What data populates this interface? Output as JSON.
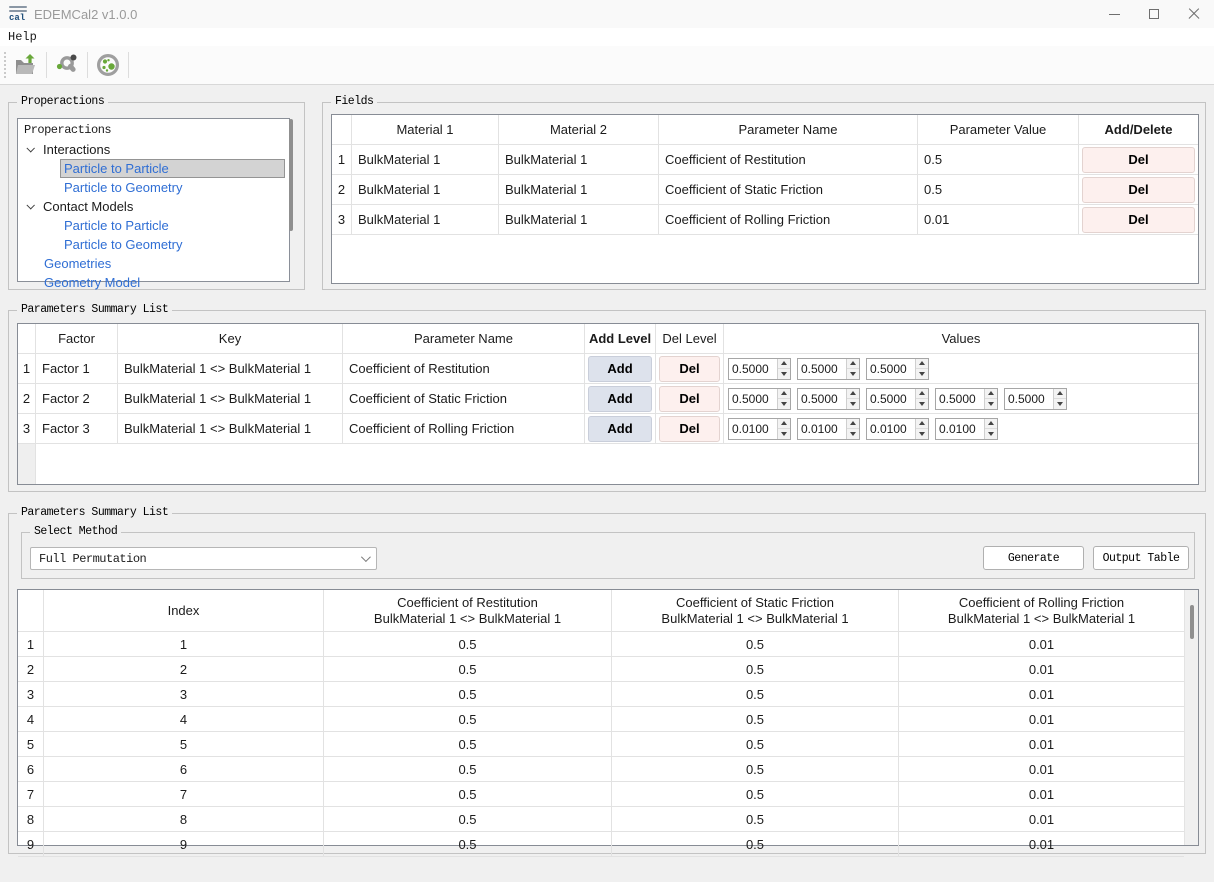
{
  "window": {
    "title": "EDEMCal2 v1.0.0"
  },
  "menu": {
    "help_label": "Help"
  },
  "toolbar": {
    "icons": [
      {
        "name": "open-project-icon"
      },
      {
        "name": "particle-tool-icon"
      },
      {
        "name": "particle-dish-icon"
      }
    ]
  },
  "properactions": {
    "group_title": "Properactions",
    "items": [
      {
        "label": "Properactions",
        "kind": "header",
        "selected": false
      },
      {
        "label": "Interactions",
        "kind": "branch",
        "selected": false
      },
      {
        "label": "Particle to Particle",
        "kind": "child",
        "selected": true
      },
      {
        "label": "Particle to Geometry",
        "kind": "child",
        "selected": false
      },
      {
        "label": "Contact Models",
        "kind": "branch",
        "selected": false
      },
      {
        "label": "Particle to Particle",
        "kind": "child",
        "selected": false
      },
      {
        "label": "Particle to Geometry",
        "kind": "child",
        "selected": false
      },
      {
        "label": "Geometries",
        "kind": "item",
        "selected": false
      },
      {
        "label": "Geometry Model",
        "kind": "item",
        "selected": false
      }
    ]
  },
  "fields": {
    "group_title": "Fields",
    "columns": [
      "Material 1",
      "Material 2",
      "Parameter Name",
      "Parameter Value",
      "Add/Delete"
    ],
    "rows": [
      {
        "num": "1",
        "material1": "BulkMaterial 1",
        "material2": "BulkMaterial 1",
        "parameter_name": "Coefficient of Restitution",
        "parameter_value": "0.5",
        "action": "Del"
      },
      {
        "num": "2",
        "material1": "BulkMaterial 1",
        "material2": "BulkMaterial 1",
        "parameter_name": "Coefficient of Static Friction",
        "parameter_value": "0.5",
        "action": "Del"
      },
      {
        "num": "3",
        "material1": "BulkMaterial 1",
        "material2": "BulkMaterial 1",
        "parameter_name": "Coefficient of Rolling Friction",
        "parameter_value": "0.01",
        "action": "Del"
      }
    ]
  },
  "summary": {
    "group_title": "Parameters Summary List",
    "columns": [
      "Factor",
      "Key",
      "Parameter Name",
      "Add Level",
      "Del Level",
      "Values"
    ],
    "rows": [
      {
        "num": "1",
        "factor": "Factor 1",
        "key": "BulkMaterial 1 <> BulkMaterial 1",
        "parameter_name": "Coefficient of Restitution",
        "add_label": "Add",
        "del_label": "Del",
        "values": [
          "0.5000",
          "0.5000",
          "0.5000"
        ]
      },
      {
        "num": "2",
        "factor": "Factor 2",
        "key": "BulkMaterial 1 <> BulkMaterial 1",
        "parameter_name": "Coefficient of Static Friction",
        "add_label": "Add",
        "del_label": "Del",
        "values": [
          "0.5000",
          "0.5000",
          "0.5000",
          "0.5000",
          "0.5000"
        ]
      },
      {
        "num": "3",
        "factor": "Factor 3",
        "key": "BulkMaterial 1 <> BulkMaterial 1",
        "parameter_name": "Coefficient of Rolling Friction",
        "add_label": "Add",
        "del_label": "Del",
        "values": [
          "0.0100",
          "0.0100",
          "0.0100",
          "0.0100"
        ]
      }
    ]
  },
  "output": {
    "group_title": "Parameters Summary List",
    "select_method": {
      "group_title": "Select Method",
      "value": "Full Permutation"
    },
    "generate_label": "Generate",
    "output_table_label": "Output Table",
    "table": {
      "columns": [
        {
          "line1": "Index",
          "line2": ""
        },
        {
          "line1": "Coefficient of Restitution",
          "line2": "BulkMaterial 1 <> BulkMaterial 1"
        },
        {
          "line1": "Coefficient of Static Friction",
          "line2": "BulkMaterial 1 <> BulkMaterial 1"
        },
        {
          "line1": "Coefficient of Rolling Friction",
          "line2": "BulkMaterial 1 <> BulkMaterial 1"
        }
      ],
      "rows": [
        {
          "num": "1",
          "cells": [
            "1",
            "0.5",
            "0.5",
            "0.01"
          ]
        },
        {
          "num": "2",
          "cells": [
            "2",
            "0.5",
            "0.5",
            "0.01"
          ]
        },
        {
          "num": "3",
          "cells": [
            "3",
            "0.5",
            "0.5",
            "0.01"
          ]
        },
        {
          "num": "4",
          "cells": [
            "4",
            "0.5",
            "0.5",
            "0.01"
          ]
        },
        {
          "num": "5",
          "cells": [
            "5",
            "0.5",
            "0.5",
            "0.01"
          ]
        },
        {
          "num": "6",
          "cells": [
            "6",
            "0.5",
            "0.5",
            "0.01"
          ]
        },
        {
          "num": "7",
          "cells": [
            "7",
            "0.5",
            "0.5",
            "0.01"
          ]
        },
        {
          "num": "8",
          "cells": [
            "8",
            "0.5",
            "0.5",
            "0.01"
          ]
        },
        {
          "num": "9",
          "cells": [
            "9",
            "0.5",
            "0.5",
            "0.01"
          ]
        }
      ]
    }
  },
  "colors": {
    "accent_blue": "#2f6ed4",
    "selection_bg": "#d3d3d3",
    "del_button_bg": "#fdf0ee",
    "add_button_bg": "#dde2ec",
    "icon_green": "#69a83a"
  }
}
